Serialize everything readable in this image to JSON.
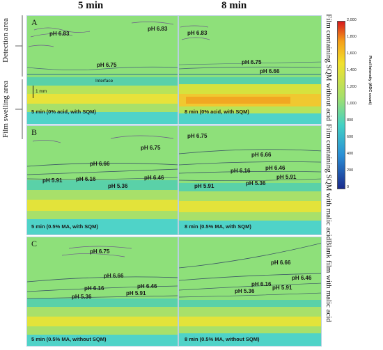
{
  "columns": [
    "5 min",
    "8 min"
  ],
  "left_labels": {
    "detection": "Detection area",
    "swelling": "Film swelling area"
  },
  "right_labels": [
    "Film containing SQM without acid",
    "Film containing SQM with malic acid",
    "Blank film with malic acid"
  ],
  "panels": {
    "A": {
      "letter": "A",
      "left": {
        "labels": [
          "pH 6.83",
          "pH 6.83",
          "pH 6.75"
        ],
        "interface": "Interface",
        "scale": "1 mm",
        "caption": "5 min (0% acid, with SQM)"
      },
      "right": {
        "labels": [
          "pH 6.83",
          "pH 6.75",
          "pH 6.66"
        ],
        "caption": "8 min (0% acid, with SQM)"
      }
    },
    "B": {
      "letter": "B",
      "left": {
        "labels": [
          "pH 6.75",
          "pH 6.66",
          "pH 5.91",
          "pH 6.16",
          "pH 6.46",
          "pH 5.36"
        ],
        "caption": "5 min (0.5% MA, with SQM)"
      },
      "right": {
        "labels": [
          "pH 6.75",
          "pH 6.66",
          "pH 6.16",
          "pH 6.46",
          "pH 5.91",
          "pH 5.91",
          "pH 5.36"
        ],
        "caption": "8 min (0.5% MA, with SQM)"
      }
    },
    "C": {
      "letter": "C",
      "left": {
        "labels": [
          "pH 6.75",
          "pH 6.66",
          "pH 6.16",
          "pH 6.46",
          "pH 5.36",
          "pH 5.91"
        ],
        "caption": "5 min (0.5% MA, without SQM)"
      },
      "right": {
        "labels": [
          "pH 6.66",
          "pH 6.46",
          "pH 6.16",
          "pH 5.36",
          "pH 5.91"
        ],
        "caption": "8 min (0.5% MA, without SQM)"
      }
    }
  },
  "colorbar": {
    "title": "Pixel Intensity (ADC count)",
    "ticks": [
      "2,000",
      "1,800",
      "1,600",
      "1,400",
      "1,200",
      "1,000",
      "800",
      "600",
      "400",
      "200",
      "0"
    ],
    "colors": [
      "#d7191c",
      "#f5a11a",
      "#f2e12d",
      "#a6e06b",
      "#43d1c4",
      "#2a8fd6",
      "#1a2a8c"
    ]
  }
}
